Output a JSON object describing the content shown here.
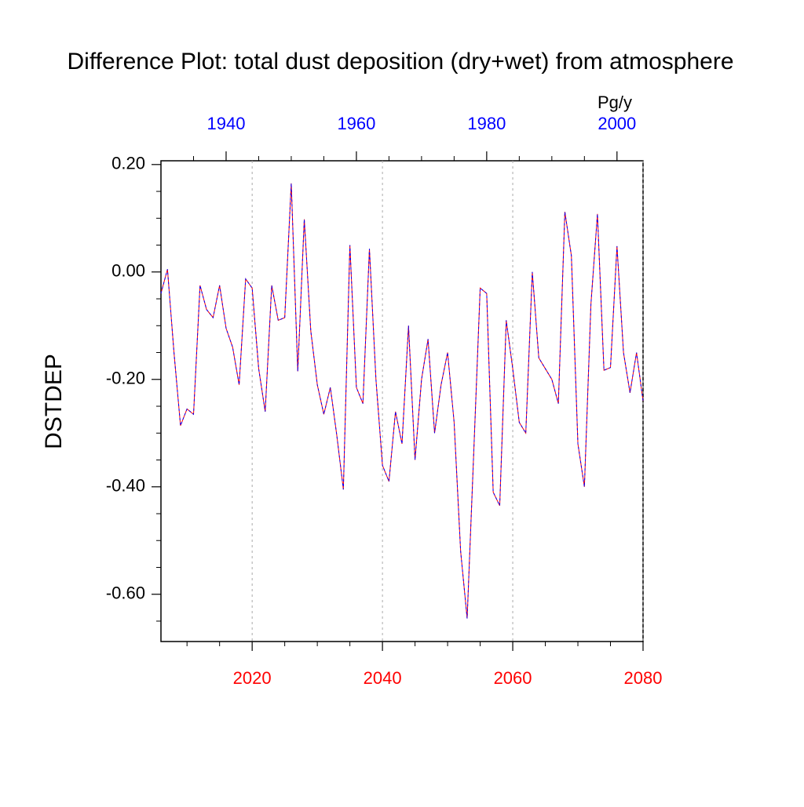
{
  "chart_data": {
    "type": "line",
    "title": "Difference Plot: total dust deposition (dry+wet) from atmosphere",
    "y_label": "DSTDEP",
    "units": "Pg/y",
    "x": [
      2006,
      2007,
      2008,
      2009,
      2010,
      2011,
      2012,
      2013,
      2014,
      2015,
      2016,
      2017,
      2018,
      2019,
      2020,
      2021,
      2022,
      2023,
      2024,
      2025,
      2026,
      2027,
      2028,
      2029,
      2030,
      2031,
      2032,
      2033,
      2034,
      2035,
      2036,
      2037,
      2038,
      2039,
      2040,
      2041,
      2042,
      2043,
      2044,
      2045,
      2046,
      2047,
      2048,
      2049,
      2050,
      2051,
      2052,
      2053,
      2054,
      2055,
      2056,
      2057,
      2058,
      2059,
      2060,
      2061,
      2062,
      2063,
      2064,
      2065,
      2066,
      2067,
      2068,
      2069,
      2070,
      2071,
      2072,
      2073,
      2074,
      2075,
      2076,
      2077,
      2078,
      2079,
      2080
    ],
    "series": [
      {
        "color": "#ff0000",
        "dash_color": "#0000ff",
        "values": [
          -0.04,
          0.005,
          -0.15,
          -0.286,
          -0.255,
          -0.265,
          -0.025,
          -0.07,
          -0.085,
          -0.025,
          -0.105,
          -0.14,
          -0.21,
          -0.013,
          -0.03,
          -0.18,
          -0.26,
          -0.025,
          -0.09,
          -0.085,
          0.165,
          -0.185,
          0.098,
          -0.11,
          -0.21,
          -0.265,
          -0.215,
          -0.305,
          -0.405,
          0.05,
          -0.215,
          -0.245,
          0.043,
          -0.2,
          -0.36,
          -0.39,
          -0.26,
          -0.32,
          -0.1,
          -0.35,
          -0.2,
          -0.125,
          -0.3,
          -0.21,
          -0.15,
          -0.28,
          -0.52,
          -0.645,
          -0.34,
          -0.03,
          -0.04,
          -0.41,
          -0.435,
          -0.09,
          -0.18,
          -0.28,
          -0.3,
          0.0,
          -0.16,
          -0.18,
          -0.2,
          -0.245,
          0.112,
          0.03,
          -0.32,
          -0.4,
          -0.06,
          0.108,
          -0.183,
          -0.178,
          0.048,
          -0.15,
          -0.225,
          -0.15,
          -0.24
        ]
      }
    ],
    "xlim": [
      2006,
      2080
    ],
    "xticks": [
      2020,
      2040,
      2060,
      2080
    ],
    "xtick_color": "#ff0000",
    "xminorticks": [
      2010,
      2015,
      2025,
      2030,
      2035,
      2045,
      2050,
      2055,
      2065,
      2070,
      2075
    ],
    "x2lim": [
      1930,
      2004
    ],
    "x2ticks": [
      1940,
      1960,
      1980,
      2000
    ],
    "x2tick_color": "#0000ff",
    "x2minorticks": [
      1935,
      1945,
      1950,
      1955,
      1965,
      1970,
      1975,
      1985,
      1990,
      1995
    ],
    "ylim": [
      -0.688,
      0.207
    ],
    "yticks": [
      {
        "value": -0.6,
        "label": "-0.60"
      },
      {
        "value": -0.4,
        "label": "-0.40"
      },
      {
        "value": -0.2,
        "label": "-0.20"
      },
      {
        "value": 0,
        "label": "0.00"
      },
      {
        "value": 0.2,
        "label": "0.20"
      }
    ],
    "yminorticks": [
      -0.65,
      -0.55,
      -0.5,
      -0.45,
      -0.35,
      -0.3,
      -0.25,
      -0.15,
      -0.1,
      -0.05,
      0.05,
      0.1,
      0.15
    ],
    "grid": true
  }
}
